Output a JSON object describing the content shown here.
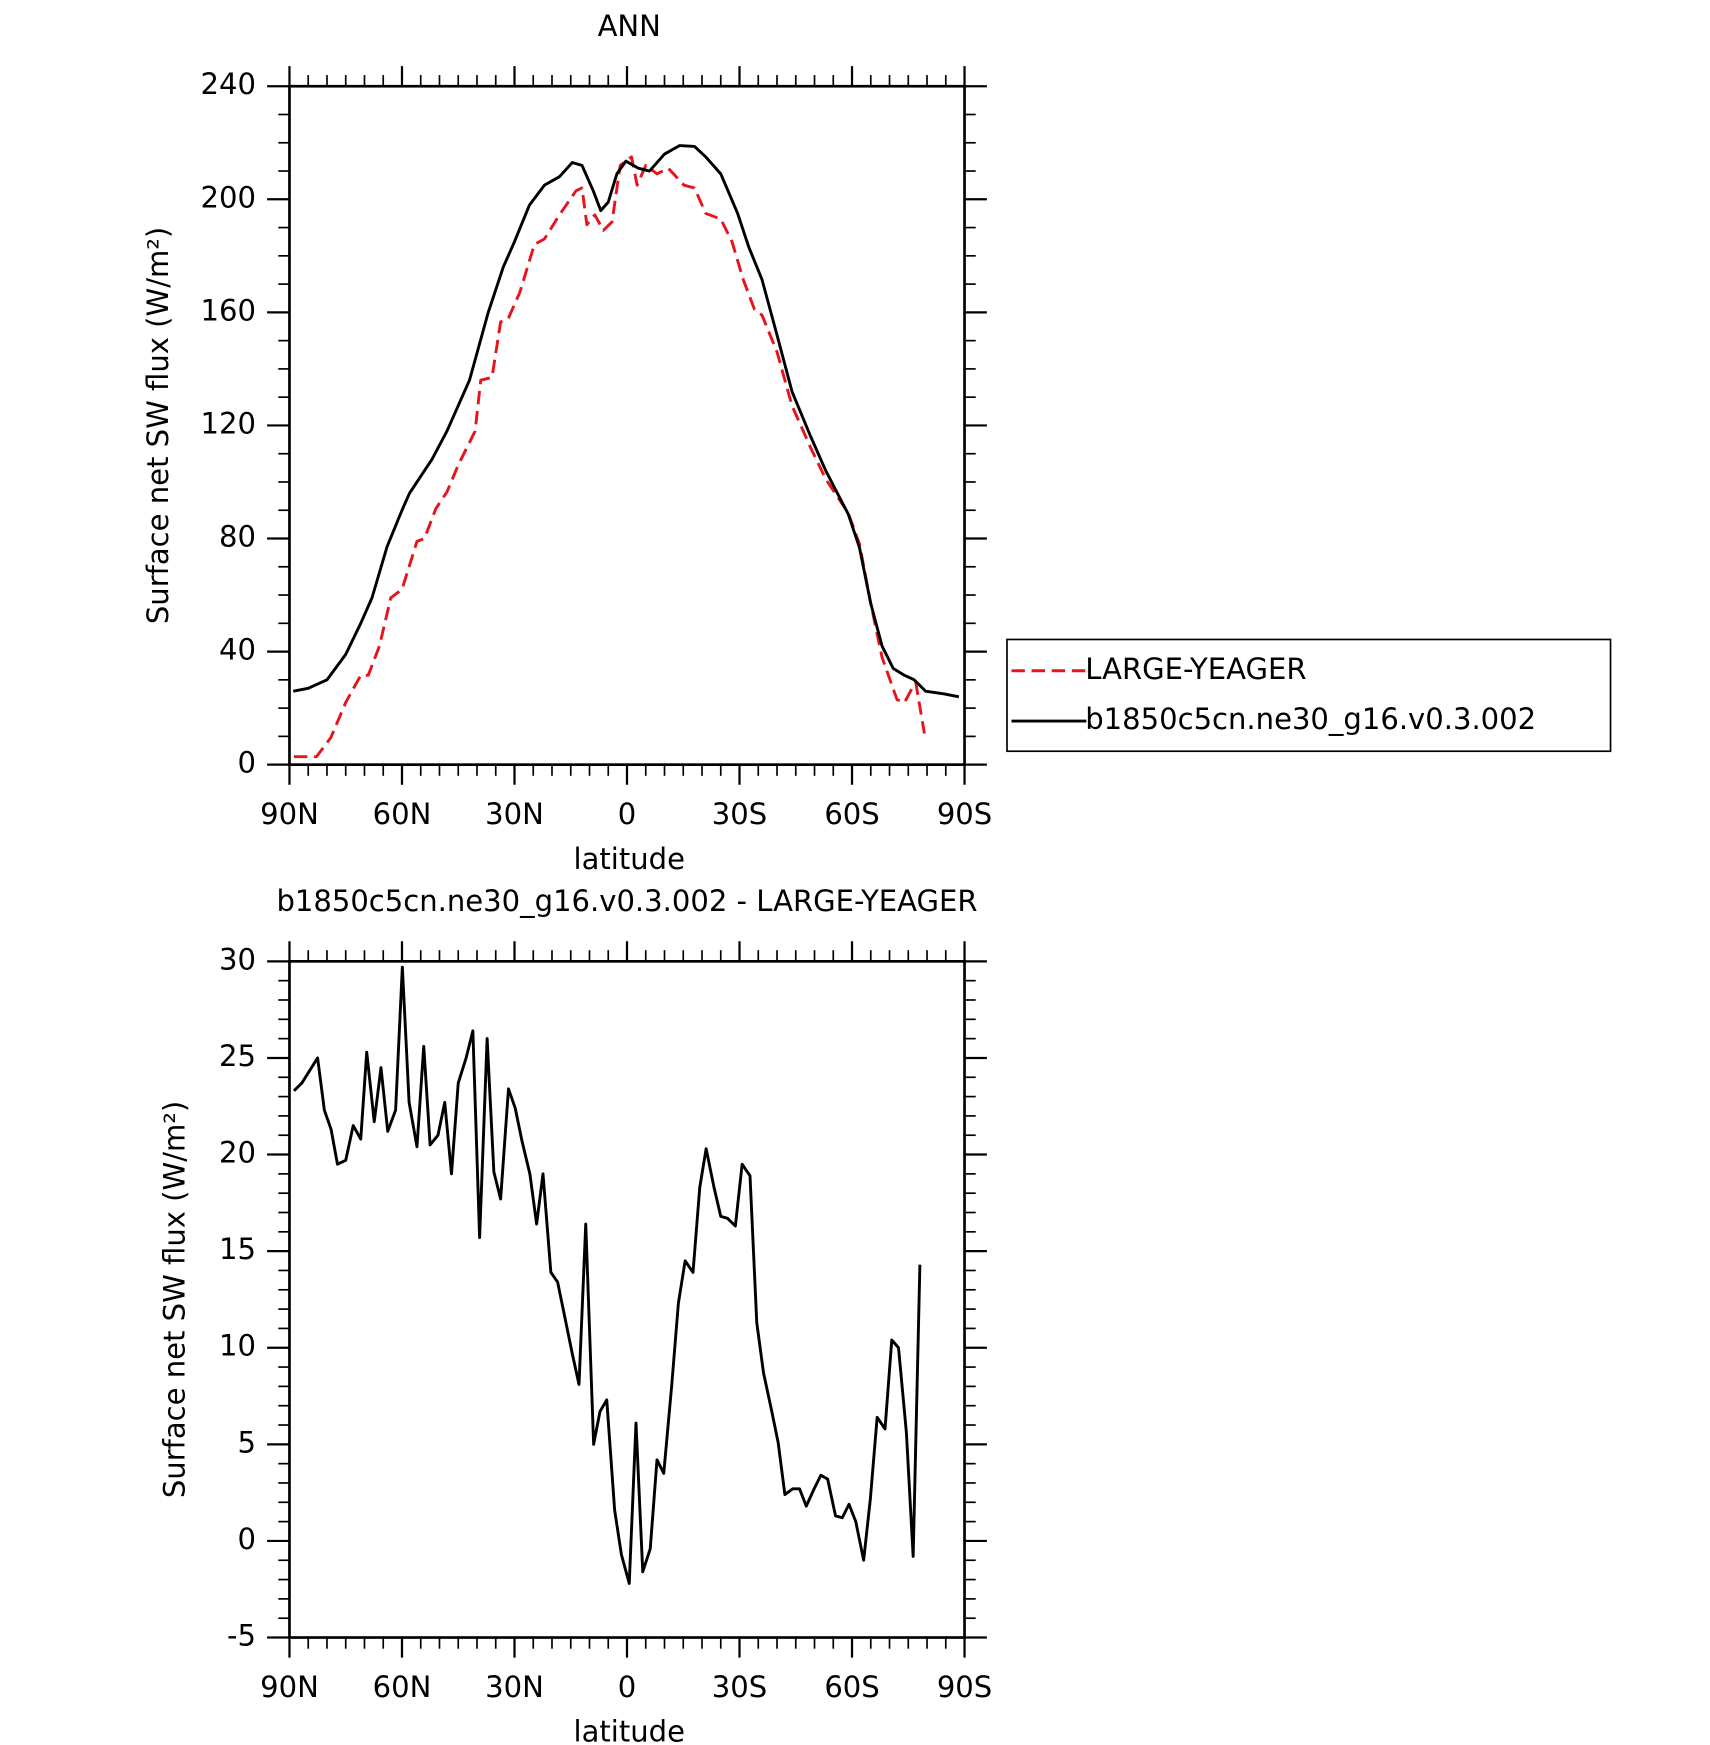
{
  "chart_data": [
    {
      "type": "line",
      "title": "ANN",
      "xlabel": "latitude",
      "ylabel": "Surface net SW flux (W/m²)",
      "xlim": [
        90,
        -90
      ],
      "xticks": [
        {
          "value": 90,
          "label": "90N"
        },
        {
          "value": 60,
          "label": "60N"
        },
        {
          "value": 30,
          "label": "30N"
        },
        0,
        {
          "value": -30,
          "label": "30S"
        },
        {
          "value": -60,
          "label": "60S"
        },
        {
          "value": -90,
          "label": "90S"
        }
      ],
      "ylim": [
        0,
        240
      ],
      "yticks": [
        0,
        40,
        80,
        120,
        160,
        200,
        240
      ],
      "legend": "right",
      "series": [
        {
          "name": "LARGE-YEAGER",
          "color": "#e8141b",
          "line_style": "dashed",
          "x": [
            88.8,
            82.8,
            79,
            75,
            71,
            69,
            66,
            63,
            60,
            56,
            54,
            51,
            48,
            45,
            40.5,
            39,
            36,
            33.7,
            31.6,
            28.6,
            24.7,
            22,
            18,
            13.6,
            12,
            10.7,
            8.6,
            6.3,
            4,
            1.8,
            -1.2,
            -2.7,
            -5,
            -8,
            -11,
            -15.2,
            -18,
            -21,
            -25,
            -28,
            -31,
            -34,
            -36,
            -40,
            -44,
            -49,
            -53,
            -59,
            -62,
            -65,
            -68,
            -72,
            -74,
            -76.3,
            -77,
            -79.3
          ],
          "values": [
            2.8,
            2.8,
            9.5,
            22,
            31.6,
            31.6,
            42,
            59,
            62,
            79,
            80,
            90.5,
            96.5,
            106,
            118,
            136,
            137,
            156.6,
            158,
            167,
            184,
            186,
            194.5,
            203,
            204,
            191,
            194.5,
            189,
            192,
            212,
            215,
            205,
            212,
            209,
            211,
            205,
            204,
            195,
            193,
            185,
            171.6,
            161,
            159,
            146,
            127,
            112,
            101,
            89,
            78,
            57,
            38,
            23,
            22,
            27.7,
            29,
            11
          ]
        },
        {
          "name": "b1850c5cn.ne30_g16.v0.3.002",
          "color": "#000000",
          "line_style": "solid",
          "x": [
            89,
            85,
            80,
            75,
            71,
            68,
            64,
            60,
            58,
            52,
            48,
            42,
            37,
            33,
            30,
            26,
            22,
            18,
            14.6,
            12,
            9,
            7,
            5,
            2.7,
            0.3,
            -3,
            -6,
            -10,
            -14,
            -18,
            -21,
            -25,
            -29.5,
            -32.5,
            -36,
            -40,
            -44,
            -49,
            -53,
            -59,
            -62,
            -65,
            -68,
            -71,
            -74,
            -76.6,
            -79.6,
            -84.6,
            -88.5
          ],
          "values": [
            26,
            27,
            30,
            39,
            50,
            59,
            77,
            90,
            96,
            108,
            118,
            136,
            160,
            176,
            185,
            198,
            205,
            208,
            213,
            212,
            203,
            196,
            199,
            209,
            213.5,
            211,
            210,
            216,
            219,
            218.7,
            215,
            209,
            195,
            183,
            171.6,
            152,
            132,
            116,
            104,
            88.6,
            76.7,
            57,
            42,
            34,
            31.6,
            30,
            26,
            25,
            24
          ]
        }
      ]
    },
    {
      "type": "line",
      "title": "b1850c5cn.ne30_g16.v0.3.002 - LARGE-YEAGER",
      "xlabel": "latitude",
      "ylabel": "Surface net SW flux (W/m²)",
      "xlim": [
        90,
        -90
      ],
      "xticks": [
        {
          "value": 90,
          "label": "90N"
        },
        {
          "value": 60,
          "label": "60N"
        },
        {
          "value": 30,
          "label": "30N"
        },
        0,
        {
          "value": -30,
          "label": "30S"
        },
        {
          "value": -60,
          "label": "60S"
        },
        {
          "value": -90,
          "label": "90S"
        }
      ],
      "ylim": [
        -5,
        30
      ],
      "yticks": [
        -5,
        0,
        5,
        10,
        15,
        20,
        25,
        30
      ],
      "series": [
        {
          "color": "#000000",
          "line_style": "solid",
          "x": [
            88.8,
            86.7,
            82.5,
            80.7,
            78.9,
            77.2,
            75,
            73,
            71,
            69.4,
            67.4,
            65.6,
            63.8,
            61.7,
            59.9,
            58.1,
            56,
            54.2,
            52.5,
            50.4,
            48.6,
            46.8,
            45,
            42.9,
            41.1,
            39.3,
            37.3,
            35.5,
            33.7,
            31.6,
            29.8,
            28,
            25.9,
            24.1,
            22.4,
            20.3,
            18.5,
            16.7,
            14.6,
            12.8,
            11,
            8.9,
            7.2,
            5.4,
            3.3,
            1.5,
            -0.6,
            -2.4,
            -4.2,
            -6.2,
            -8,
            -9.8,
            -11.9,
            -13.7,
            -15.5,
            -17.6,
            -19.4,
            -21.1,
            -23.2,
            -25,
            -26.8,
            -28.9,
            -30.7,
            -32.8,
            -34.6,
            -36.4,
            -38.5,
            -40.3,
            -42.1,
            -44.2,
            -46,
            -47.8,
            -49.9,
            -51.7,
            -53.5,
            -55.6,
            -57.4,
            -59.2,
            -61,
            -63.1,
            -64.9,
            -66.7,
            -68.8,
            -70.6,
            -72.4,
            -74.5,
            -76.3,
            -78.1
          ],
          "values": [
            23.3,
            23.7,
            25.0,
            22.3,
            21.3,
            19.5,
            19.7,
            21.5,
            20.8,
            25.3,
            21.7,
            24.5,
            21.2,
            22.3,
            29.7,
            22.7,
            20.4,
            25.6,
            20.5,
            21.0,
            22.7,
            19.0,
            23.7,
            25.0,
            26.4,
            15.7,
            26.0,
            19.1,
            17.7,
            23.4,
            22.4,
            20.7,
            19.0,
            16.4,
            19.0,
            13.9,
            13.4,
            11.7,
            9.7,
            8.1,
            16.4,
            5.0,
            6.7,
            7.3,
            1.6,
            -0.7,
            -2.2,
            6.1,
            -1.6,
            -0.4,
            4.2,
            3.5,
            8.0,
            12.3,
            14.5,
            13.9,
            18.3,
            20.3,
            18.3,
            16.8,
            16.7,
            16.3,
            19.5,
            18.9,
            11.3,
            8.7,
            6.8,
            5.1,
            2.4,
            2.7,
            2.7,
            1.8,
            2.7,
            3.4,
            3.2,
            1.3,
            1.2,
            1.9,
            1.0,
            -1.0,
            2.2,
            6.4,
            5.8,
            10.4,
            10.0,
            5.6,
            -0.8,
            14.3
          ]
        }
      ]
    }
  ]
}
